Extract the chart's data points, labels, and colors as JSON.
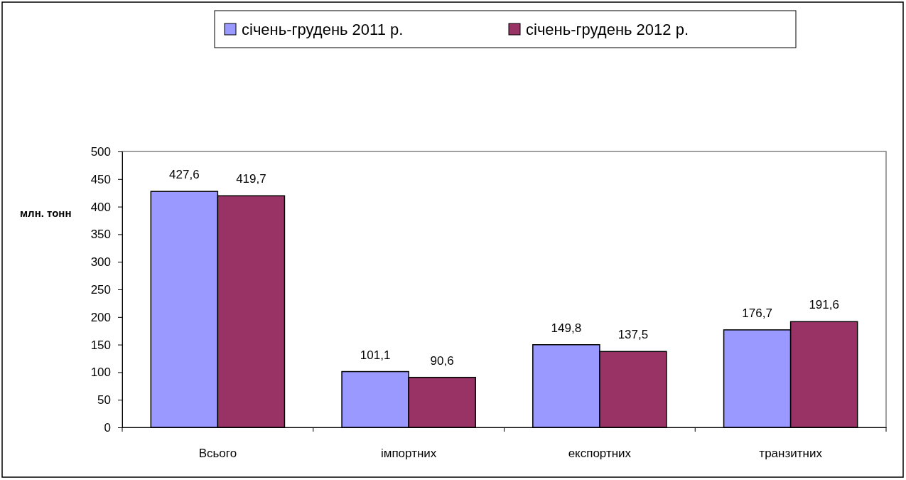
{
  "chart_data": {
    "type": "bar",
    "ylabel": "млн. тонн",
    "categories": [
      "Всього",
      "імпортних",
      "експортних",
      "транзитних"
    ],
    "series": [
      {
        "name": "січень-грудень 2011 р.",
        "color": "#9999ff",
        "values": [
          427.6,
          101.1,
          149.8,
          176.7
        ],
        "value_labels": [
          "427,6",
          "101,1",
          "149,8",
          "176,7"
        ]
      },
      {
        "name": "січень-грудень 2012 р.",
        "color": "#993366",
        "values": [
          419.7,
          90.6,
          137.5,
          191.6
        ],
        "value_labels": [
          "419,7",
          "90,6",
          "137,5",
          "191,6"
        ]
      }
    ],
    "ylim": [
      0,
      500
    ],
    "yticks": [
      0,
      50,
      100,
      150,
      200,
      250,
      300,
      350,
      400,
      450,
      500
    ],
    "grid": false,
    "legend": "top"
  }
}
